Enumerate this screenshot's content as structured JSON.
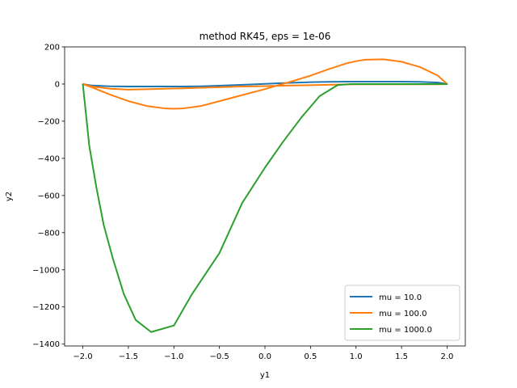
{
  "chart_data": {
    "type": "line",
    "title": "method RK45, eps = 1e-06",
    "xlabel": "y1",
    "ylabel": "y2",
    "xlim": [
      -2.2,
      2.2
    ],
    "ylim": [
      -1410,
      200
    ],
    "xticks": [
      -2.0,
      -1.5,
      -1.0,
      -0.5,
      0.0,
      0.5,
      1.0,
      1.5,
      2.0
    ],
    "xtick_labels": [
      "−2.0",
      "−1.5",
      "−1.0",
      "−0.5",
      "0.0",
      "0.5",
      "1.0",
      "1.5",
      "2.0"
    ],
    "yticks": [
      200,
      0,
      -200,
      -400,
      -600,
      -800,
      -1000,
      -1200,
      -1400
    ],
    "ytick_labels": [
      "200",
      "0",
      "−200",
      "−400",
      "−600",
      "−800",
      "−1000",
      "−1200",
      "−1400"
    ],
    "grid": false,
    "legend_position": "lower-right",
    "series": [
      {
        "name": "mu = 10.0",
        "color": "#1f77b4",
        "x": [
          -2.0,
          -1.9,
          -1.7,
          -1.5,
          -1.3,
          -1.1,
          -1.0,
          -0.9,
          -0.7,
          -0.5,
          -0.3,
          -0.1,
          0.0,
          0.1,
          0.3,
          0.5,
          0.7,
          0.9,
          1.0,
          1.1,
          1.3,
          1.5,
          1.7,
          1.9,
          2.0,
          1.9,
          1.7,
          1.5,
          1.3,
          1.1,
          1.0,
          0.9,
          0.7,
          0.5,
          0.3,
          0.1,
          0.0,
          -0.1,
          -0.3,
          -0.5,
          -0.7,
          -0.9,
          -1.0,
          -1.1,
          -1.3,
          -1.5,
          -1.7,
          -1.9,
          -2.0
        ],
        "y": [
          0,
          -8,
          -12,
          -13,
          -13,
          -13,
          -13,
          -13,
          -12,
          -9,
          -5,
          -1,
          1,
          3,
          7,
          10,
          12,
          13,
          13,
          13,
          13,
          13,
          12,
          8,
          0,
          8,
          12,
          13,
          13,
          13,
          13,
          13,
          12,
          10,
          7,
          3,
          1,
          -1,
          -5,
          -9,
          -12,
          -13,
          -13,
          -13,
          -13,
          -13,
          -12,
          -8,
          0
        ]
      },
      {
        "name": "mu = 100.0",
        "color": "#ff7f0e",
        "x": [
          2.0,
          1.9,
          1.7,
          1.5,
          1.3,
          1.1,
          1.0,
          0.9,
          0.7,
          0.5,
          0.3,
          0.1,
          0.0,
          -0.1,
          -0.3,
          -0.5,
          -0.7,
          -0.9,
          -1.0,
          -1.1,
          -1.3,
          -1.5,
          -1.7,
          -1.9,
          -2.0,
          -1.9,
          -1.7,
          -1.5,
          -1.3,
          -1.1,
          -1.0,
          -0.9,
          -0.7,
          -0.5,
          -0.3,
          -0.1,
          0.0,
          0.1,
          0.3,
          0.5,
          0.7,
          0.9,
          1.0,
          1.1,
          1.3,
          1.5,
          1.7,
          1.9,
          2.0
        ],
        "y": [
          0,
          -1,
          -1,
          -1,
          -1,
          -1,
          -1,
          -2,
          -4,
          -6,
          -8,
          -10,
          -11,
          -12,
          -14,
          -17,
          -20,
          -23,
          -24,
          -25,
          -28,
          -30,
          -25,
          -13,
          0,
          -18,
          -57,
          -92,
          -118,
          -131,
          -133,
          -131,
          -118,
          -92,
          -66,
          -40,
          -27,
          -13,
          15,
          45,
          80,
          112,
          123,
          131,
          133,
          120,
          92,
          45,
          0
        ]
      },
      {
        "name": "mu = 1000.0",
        "color": "#2ca02c",
        "x": [
          -2.0,
          -1.93,
          -1.85,
          -1.77,
          -1.67,
          -1.55,
          -1.42,
          -1.25,
          -1.0,
          -0.8,
          -0.5,
          -0.25,
          0.0,
          0.2,
          0.4,
          0.6,
          0.8,
          0.95,
          1.0,
          1.2,
          1.5,
          1.8,
          2.0
        ],
        "y": [
          0,
          -330,
          -560,
          -760,
          -940,
          -1130,
          -1270,
          -1335,
          -1300,
          -1130,
          -910,
          -640,
          -450,
          -310,
          -180,
          -65,
          -5,
          0,
          0,
          0,
          0,
          0,
          0
        ]
      }
    ]
  }
}
